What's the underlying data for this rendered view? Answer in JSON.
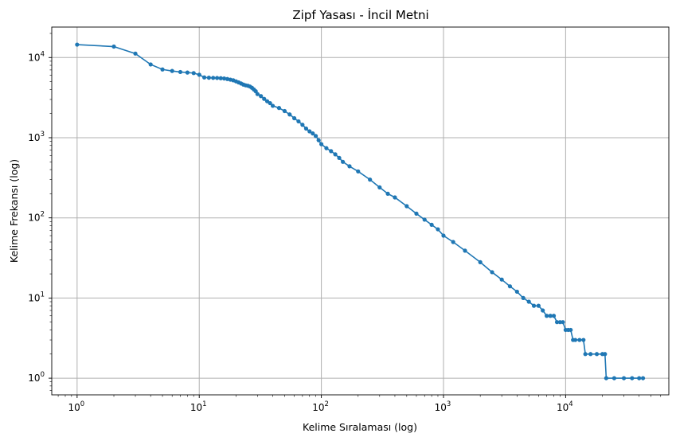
{
  "chart_data": {
    "type": "line",
    "title": "Zipf Yasası - İncil Metni",
    "xlabel": "Kelime Sıralaması (log)",
    "ylabel": "Kelime Frekansı (log)",
    "xscale": "log",
    "yscale": "log",
    "xlim": [
      0.62,
      70000
    ],
    "ylim": [
      0.62,
      24000
    ],
    "grid": true,
    "marker": "circle",
    "color": "#1f77b4",
    "x_ticks": [
      {
        "base": "10",
        "exp": "0",
        "value": 1
      },
      {
        "base": "10",
        "exp": "1",
        "value": 10
      },
      {
        "base": "10",
        "exp": "2",
        "value": 100
      },
      {
        "base": "10",
        "exp": "3",
        "value": 1000
      },
      {
        "base": "10",
        "exp": "4",
        "value": 10000
      }
    ],
    "y_ticks": [
      {
        "base": "10",
        "exp": "0",
        "value": 1
      },
      {
        "base": "10",
        "exp": "1",
        "value": 10
      },
      {
        "base": "10",
        "exp": "2",
        "value": 100
      },
      {
        "base": "10",
        "exp": "3",
        "value": 1000
      },
      {
        "base": "10",
        "exp": "4",
        "value": 10000
      }
    ],
    "series": [
      {
        "points": [
          [
            1,
            14500
          ],
          [
            2,
            13700
          ],
          [
            3,
            11200
          ],
          [
            4,
            8200
          ],
          [
            5,
            7100
          ],
          [
            6,
            6800
          ],
          [
            7,
            6600
          ],
          [
            8,
            6500
          ],
          [
            9,
            6400
          ],
          [
            10,
            6100
          ],
          [
            11,
            5650
          ],
          [
            12,
            5600
          ],
          [
            13,
            5580
          ],
          [
            14,
            5560
          ],
          [
            15,
            5520
          ],
          [
            16,
            5480
          ],
          [
            17,
            5400
          ],
          [
            18,
            5300
          ],
          [
            19,
            5200
          ],
          [
            20,
            5050
          ],
          [
            21,
            4900
          ],
          [
            22,
            4750
          ],
          [
            23,
            4600
          ],
          [
            24,
            4500
          ],
          [
            25,
            4450
          ],
          [
            26,
            4350
          ],
          [
            27,
            4200
          ],
          [
            28,
            4000
          ],
          [
            29,
            3800
          ],
          [
            30,
            3500
          ],
          [
            32,
            3300
          ],
          [
            34,
            3050
          ],
          [
            36,
            2850
          ],
          [
            38,
            2700
          ],
          [
            40,
            2500
          ],
          [
            45,
            2350
          ],
          [
            50,
            2150
          ],
          [
            55,
            1950
          ],
          [
            60,
            1750
          ],
          [
            65,
            1600
          ],
          [
            70,
            1450
          ],
          [
            75,
            1300
          ],
          [
            80,
            1200
          ],
          [
            85,
            1130
          ],
          [
            90,
            1050
          ],
          [
            95,
            930
          ],
          [
            100,
            830
          ],
          [
            110,
            740
          ],
          [
            120,
            680
          ],
          [
            130,
            620
          ],
          [
            140,
            560
          ],
          [
            150,
            500
          ],
          [
            170,
            440
          ],
          [
            200,
            380
          ],
          [
            250,
            300
          ],
          [
            300,
            240
          ],
          [
            350,
            200
          ],
          [
            400,
            180
          ],
          [
            500,
            140
          ],
          [
            600,
            113
          ],
          [
            700,
            95
          ],
          [
            800,
            82
          ],
          [
            900,
            72
          ],
          [
            1000,
            60
          ],
          [
            1200,
            50
          ],
          [
            1500,
            39
          ],
          [
            2000,
            28
          ],
          [
            2500,
            21
          ],
          [
            3000,
            17
          ],
          [
            3500,
            14
          ],
          [
            4000,
            12
          ],
          [
            4500,
            10
          ],
          [
            5000,
            9
          ],
          [
            5500,
            8
          ],
          [
            6000,
            8
          ],
          [
            6500,
            7
          ],
          [
            7000,
            6
          ],
          [
            7500,
            6
          ],
          [
            8000,
            6
          ],
          [
            8500,
            5
          ],
          [
            9000,
            5
          ],
          [
            9500,
            5
          ],
          [
            10000,
            4
          ],
          [
            10500,
            4
          ],
          [
            11000,
            4
          ],
          [
            11500,
            3
          ],
          [
            12000,
            3
          ],
          [
            13000,
            3
          ],
          [
            14000,
            3
          ],
          [
            14500,
            2
          ],
          [
            16000,
            2
          ],
          [
            18000,
            2
          ],
          [
            20000,
            2
          ],
          [
            21000,
            2
          ],
          [
            21500,
            1
          ],
          [
            25000,
            1
          ],
          [
            30000,
            1
          ],
          [
            35000,
            1
          ],
          [
            40000,
            1
          ],
          [
            43000,
            1
          ]
        ]
      }
    ]
  }
}
